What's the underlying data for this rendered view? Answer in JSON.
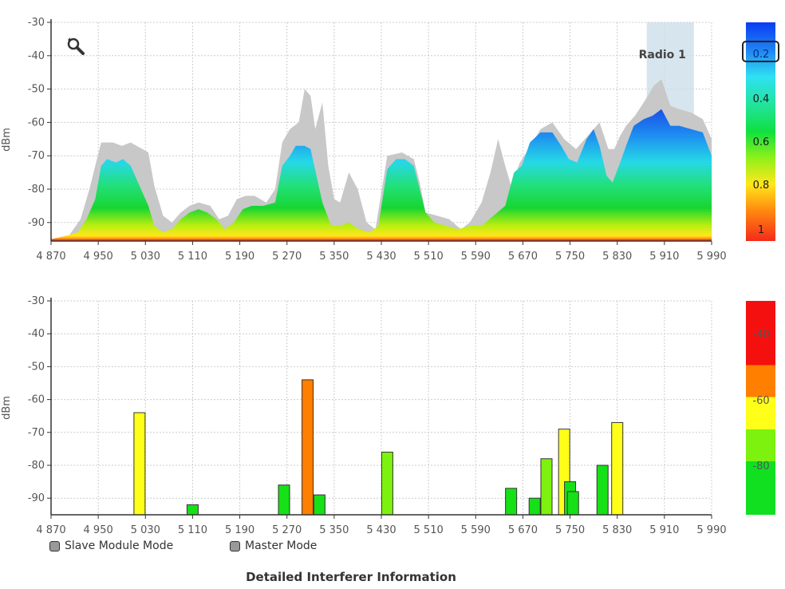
{
  "spectrum": {
    "radio_label": "Radio 1",
    "y_axis_label": "dBm",
    "y_ticks": [
      "-30",
      "-40",
      "-50",
      "-60",
      "-70",
      "-80",
      "-90"
    ],
    "x_ticks": [
      "4 870",
      "4 950",
      "5 030",
      "5 110",
      "5 190",
      "5 270",
      "5 350",
      "5 430",
      "5 510",
      "5 590",
      "5 670",
      "5 750",
      "5 830",
      "5 910",
      "5 990"
    ],
    "scale_labels": [
      "0.2",
      "0.4",
      "0.6",
      "0.8",
      "1"
    ]
  },
  "interferer": {
    "y_axis_label": "dBm",
    "y_ticks": [
      "-30",
      "-40",
      "-50",
      "-60",
      "-70",
      "-80",
      "-90"
    ],
    "x_ticks": [
      "4 870",
      "4 950",
      "5 030",
      "5 110",
      "5 190",
      "5 270",
      "5 350",
      "5 430",
      "5 510",
      "5 590",
      "5 670",
      "5 750",
      "5 830",
      "5 910",
      "5 990"
    ],
    "scale_labels": [
      "-40",
      "-60",
      "-80"
    ]
  },
  "legend": {
    "slave_label": "Slave Module Mode",
    "master_label": "Master Mode"
  },
  "detail_link": "Detailed Interferer Information",
  "colors": {
    "axis": "#333333",
    "grid": "#cccccc",
    "envelope": "#c8c8c8",
    "radio_band": "#c9dde8",
    "bar_yellow": "#ffff1a",
    "bar_orange": "#ff7f00",
    "bar_green": "#16e016",
    "bar_lime": "#7df20e"
  },
  "chart_data": [
    {
      "type": "area",
      "x_range": [
        4870,
        5990
      ],
      "ylim": [
        -95,
        -30
      ],
      "ylabel": "dBm",
      "highlight_band": {
        "label": "Radio 1",
        "x_range": [
          5880,
          5960
        ]
      },
      "max_hold": [
        [
          4870,
          -95
        ],
        [
          4900,
          -94
        ],
        [
          4920,
          -89
        ],
        [
          4935,
          -80
        ],
        [
          4945,
          -73
        ],
        [
          4955,
          -66
        ],
        [
          4975,
          -66
        ],
        [
          4990,
          -67
        ],
        [
          5005,
          -66
        ],
        [
          5015,
          -67
        ],
        [
          5025,
          -68
        ],
        [
          5035,
          -69
        ],
        [
          5045,
          -79
        ],
        [
          5060,
          -88
        ],
        [
          5075,
          -90
        ],
        [
          5090,
          -87
        ],
        [
          5105,
          -85
        ],
        [
          5120,
          -84
        ],
        [
          5140,
          -85
        ],
        [
          5155,
          -89
        ],
        [
          5170,
          -88
        ],
        [
          5185,
          -83
        ],
        [
          5200,
          -82
        ],
        [
          5215,
          -82
        ],
        [
          5235,
          -84
        ],
        [
          5250,
          -80
        ],
        [
          5262,
          -66
        ],
        [
          5275,
          -62
        ],
        [
          5290,
          -60
        ],
        [
          5300,
          -50
        ],
        [
          5310,
          -52
        ],
        [
          5318,
          -62
        ],
        [
          5330,
          -54
        ],
        [
          5340,
          -73
        ],
        [
          5350,
          -83
        ],
        [
          5360,
          -84
        ],
        [
          5375,
          -75
        ],
        [
          5390,
          -80
        ],
        [
          5405,
          -90
        ],
        [
          5420,
          -92
        ],
        [
          5440,
          -70
        ],
        [
          5465,
          -69
        ],
        [
          5485,
          -71
        ],
        [
          5495,
          -78
        ],
        [
          5505,
          -87
        ],
        [
          5525,
          -88
        ],
        [
          5545,
          -89
        ],
        [
          5565,
          -92
        ],
        [
          5580,
          -90
        ],
        [
          5600,
          -84
        ],
        [
          5615,
          -75
        ],
        [
          5628,
          -65
        ],
        [
          5640,
          -73
        ],
        [
          5650,
          -79
        ],
        [
          5665,
          -72
        ],
        [
          5680,
          -68
        ],
        [
          5700,
          -62
        ],
        [
          5720,
          -60
        ],
        [
          5740,
          -65
        ],
        [
          5760,
          -68
        ],
        [
          5780,
          -64
        ],
        [
          5800,
          -60
        ],
        [
          5815,
          -68
        ],
        [
          5825,
          -68
        ],
        [
          5835,
          -64
        ],
        [
          5845,
          -61
        ],
        [
          5860,
          -58
        ],
        [
          5875,
          -54
        ],
        [
          5892,
          -49
        ],
        [
          5905,
          -47
        ],
        [
          5920,
          -55
        ],
        [
          5935,
          -56
        ],
        [
          5955,
          -57
        ],
        [
          5975,
          -59
        ],
        [
          5990,
          -65
        ]
      ],
      "average": [
        [
          4870,
          -95
        ],
        [
          4895,
          -94
        ],
        [
          4915,
          -93
        ],
        [
          4930,
          -89
        ],
        [
          4945,
          -83
        ],
        [
          4955,
          -73
        ],
        [
          4965,
          -71
        ],
        [
          4980,
          -72
        ],
        [
          4992,
          -71
        ],
        [
          5005,
          -73
        ],
        [
          5015,
          -77
        ],
        [
          5025,
          -81
        ],
        [
          5035,
          -85
        ],
        [
          5045,
          -91
        ],
        [
          5060,
          -93
        ],
        [
          5075,
          -92
        ],
        [
          5090,
          -89
        ],
        [
          5105,
          -87
        ],
        [
          5120,
          -86
        ],
        [
          5135,
          -87
        ],
        [
          5150,
          -89
        ],
        [
          5165,
          -92
        ],
        [
          5180,
          -90
        ],
        [
          5195,
          -86
        ],
        [
          5210,
          -85
        ],
        [
          5230,
          -85
        ],
        [
          5250,
          -84
        ],
        [
          5262,
          -73
        ],
        [
          5275,
          -70
        ],
        [
          5285,
          -67
        ],
        [
          5300,
          -67
        ],
        [
          5310,
          -68
        ],
        [
          5320,
          -76
        ],
        [
          5330,
          -84
        ],
        [
          5345,
          -91
        ],
        [
          5360,
          -91
        ],
        [
          5375,
          -90
        ],
        [
          5392,
          -92
        ],
        [
          5410,
          -93
        ],
        [
          5425,
          -91
        ],
        [
          5440,
          -74
        ],
        [
          5455,
          -71
        ],
        [
          5470,
          -71
        ],
        [
          5485,
          -73
        ],
        [
          5495,
          -80
        ],
        [
          5505,
          -87
        ],
        [
          5520,
          -90
        ],
        [
          5540,
          -91
        ],
        [
          5560,
          -92
        ],
        [
          5580,
          -91
        ],
        [
          5600,
          -91
        ],
        [
          5620,
          -88
        ],
        [
          5640,
          -85
        ],
        [
          5655,
          -75
        ],
        [
          5668,
          -73
        ],
        [
          5682,
          -66
        ],
        [
          5700,
          -63
        ],
        [
          5720,
          -63
        ],
        [
          5735,
          -67
        ],
        [
          5748,
          -71
        ],
        [
          5762,
          -72
        ],
        [
          5778,
          -65
        ],
        [
          5790,
          -62
        ],
        [
          5800,
          -67
        ],
        [
          5812,
          -76
        ],
        [
          5822,
          -78
        ],
        [
          5835,
          -72
        ],
        [
          5845,
          -67
        ],
        [
          5858,
          -61
        ],
        [
          5875,
          -59
        ],
        [
          5890,
          -58
        ],
        [
          5905,
          -56
        ],
        [
          5920,
          -61
        ],
        [
          5935,
          -61
        ],
        [
          5955,
          -62
        ],
        [
          5975,
          -63
        ],
        [
          5990,
          -70
        ]
      ],
      "density_scale": [
        "0.2",
        "0.4",
        "0.6",
        "0.8",
        "1"
      ]
    },
    {
      "type": "bar",
      "x_range": [
        4870,
        5990
      ],
      "ylim": [
        -95,
        -30
      ],
      "ylabel": "dBm",
      "bars": [
        {
          "freq": 5020,
          "value": -64,
          "color": "yellow"
        },
        {
          "freq": 5110,
          "value": -92,
          "color": "green"
        },
        {
          "freq": 5265,
          "value": -86,
          "color": "green"
        },
        {
          "freq": 5305,
          "value": -54,
          "color": "orange"
        },
        {
          "freq": 5325,
          "value": -89,
          "color": "green"
        },
        {
          "freq": 5440,
          "value": -76,
          "color": "lime"
        },
        {
          "freq": 5650,
          "value": -87,
          "color": "green"
        },
        {
          "freq": 5690,
          "value": -90,
          "color": "green"
        },
        {
          "freq": 5710,
          "value": -78,
          "color": "lime"
        },
        {
          "freq": 5740,
          "value": -69,
          "color": "yellow"
        },
        {
          "freq": 5750,
          "value": -85,
          "color": "green"
        },
        {
          "freq": 5755,
          "value": -88,
          "color": "green"
        },
        {
          "freq": 5805,
          "value": -80,
          "color": "green"
        },
        {
          "freq": 5830,
          "value": -67,
          "color": "yellow"
        }
      ],
      "color_scale": [
        "-40",
        "-60",
        "-80"
      ]
    }
  ]
}
